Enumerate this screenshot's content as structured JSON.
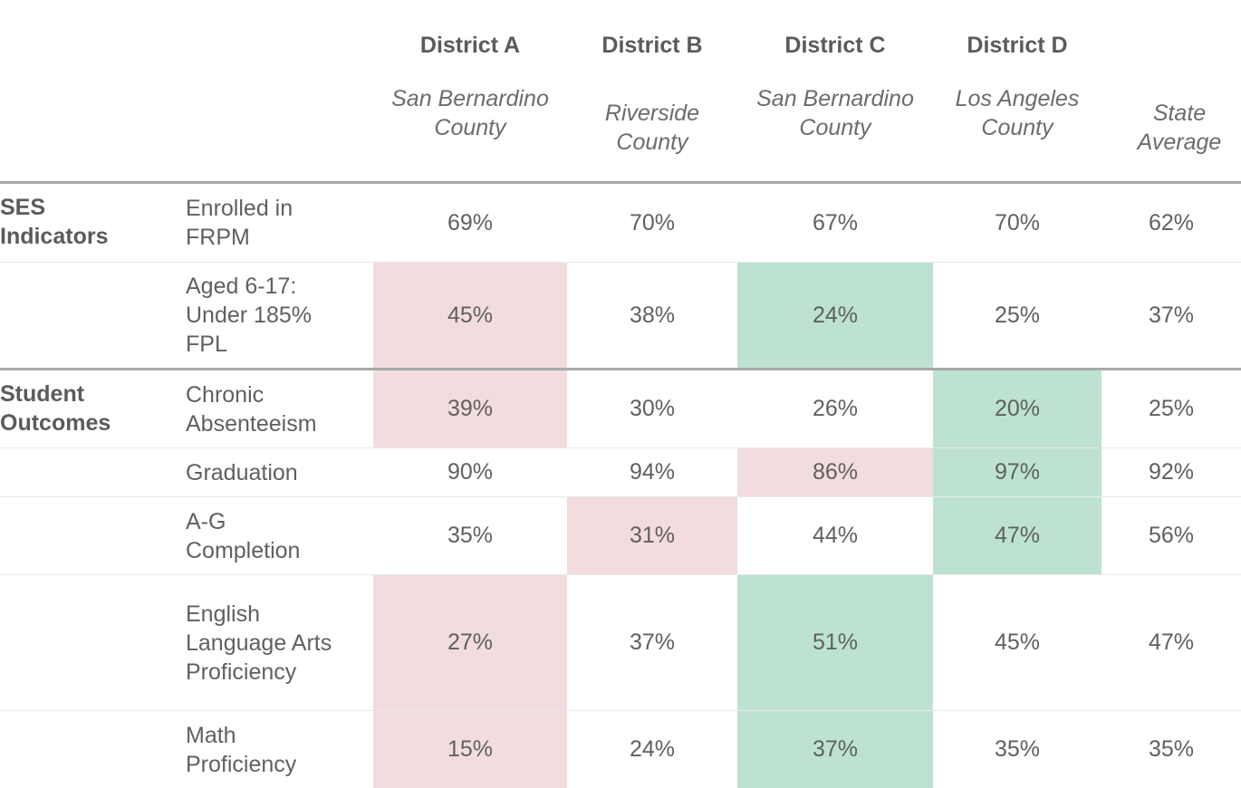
{
  "columns": [
    {
      "name": "District A",
      "county": "San Bernardino County"
    },
    {
      "name": "District B",
      "county": "Riverside County"
    },
    {
      "name": "District C",
      "county": "San Bernardino County"
    },
    {
      "name": "District D",
      "county": "Los Angeles County"
    },
    {
      "name": "",
      "county": "State Average"
    }
  ],
  "groups": [
    {
      "label": "SES Indicators"
    },
    {
      "label": "Student Outcomes"
    }
  ],
  "rows": [
    {
      "metric": "Enrolled in FRPM",
      "values": [
        "69%",
        "70%",
        "67%",
        "70%",
        "62%"
      ],
      "highlight": [
        "none",
        "none",
        "none",
        "none",
        "none"
      ]
    },
    {
      "metric": "Aged 6-17: Under 185% FPL",
      "values": [
        "45%",
        "38%",
        "24%",
        "25%",
        "37%"
      ],
      "highlight": [
        "red",
        "none",
        "green",
        "none",
        "none"
      ]
    },
    {
      "metric": "Chronic Absenteeism",
      "values": [
        "39%",
        "30%",
        "26%",
        "20%",
        "25%"
      ],
      "highlight": [
        "red",
        "none",
        "none",
        "green",
        "none"
      ]
    },
    {
      "metric": "Graduation",
      "values": [
        "90%",
        "94%",
        "86%",
        "97%",
        "92%"
      ],
      "highlight": [
        "none",
        "none",
        "red",
        "green",
        "none"
      ]
    },
    {
      "metric": "A-G Completion",
      "values": [
        "35%",
        "31%",
        "44%",
        "47%",
        "56%"
      ],
      "highlight": [
        "none",
        "red",
        "none",
        "green",
        "none"
      ]
    },
    {
      "metric": "English Language Arts Proficiency",
      "values": [
        "27%",
        "37%",
        "51%",
        "45%",
        "47%"
      ],
      "highlight": [
        "red",
        "none",
        "green",
        "none",
        "none"
      ]
    },
    {
      "metric": "Math Proficiency",
      "values": [
        "15%",
        "24%",
        "37%",
        "35%",
        "35%"
      ],
      "highlight": [
        "red",
        "none",
        "green",
        "none",
        "none"
      ]
    }
  ],
  "colors": {
    "worse": "#f2dcdd",
    "better": "#bde3d0",
    "rule": "#a9a9ab"
  }
}
